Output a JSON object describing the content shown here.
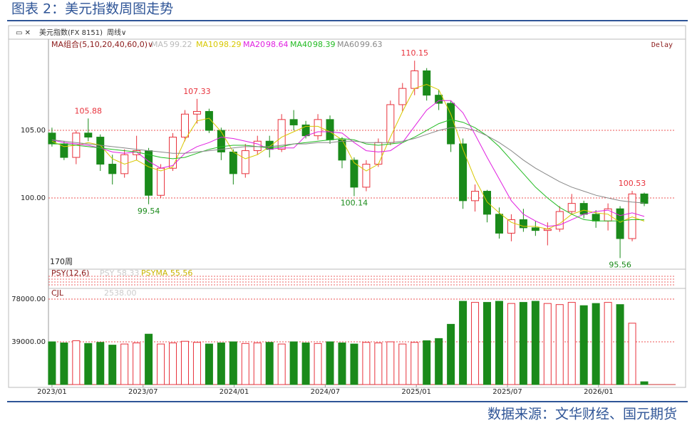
{
  "header": {
    "title": "图表 2：美元指数周图走势"
  },
  "footer": {
    "source": "数据来源：文华财经、国元期货"
  },
  "toolbar": {
    "symbol": "美元指数(FX 8151)",
    "period": "周线∨"
  },
  "chart_data": {
    "type": "candlestick",
    "ma_title": "MA组合(5,10,20,40,60,0)∨",
    "status": "Delay",
    "count_label": "170周",
    "inactive_ma": {
      "name": "MA5",
      "value": 99.22
    },
    "xlim": [
      -1,
      178
    ],
    "xticks": [
      {
        "value": 0,
        "label": "2023/01"
      },
      {
        "value": 26,
        "label": "2023/07"
      },
      {
        "value": 52,
        "label": "2024/01"
      },
      {
        "value": 78,
        "label": "2024/07"
      },
      {
        "value": 104,
        "label": "2025/01"
      },
      {
        "value": 130,
        "label": "2025/07"
      },
      {
        "value": 156,
        "label": "2026/01"
      }
    ],
    "ylim": [
      95.16,
      111.74
    ],
    "yticks": [
      {
        "value": 105,
        "label": "105.00"
      },
      {
        "value": 100,
        "label": "100.00"
      }
    ],
    "grid": true,
    "candles": {
      "x": [
        0,
        3.45,
        6.9,
        10.35,
        13.8,
        17.25,
        20.7,
        24.15,
        27.6,
        31.05,
        34.5,
        37.95,
        41.4,
        44.85,
        48.3,
        51.75,
        55.2,
        58.65,
        62.1,
        65.55,
        69,
        72.45,
        75.9,
        79.35,
        82.8,
        86.25,
        89.7,
        93.15,
        96.6,
        100.05,
        103.5,
        106.95,
        110.4,
        113.85,
        117.3,
        120.75,
        124.2,
        127.65,
        131.1,
        134.55,
        138,
        141.45,
        144.9,
        148.35,
        151.8,
        155.25,
        158.7,
        162.15,
        165.6,
        169.05
      ],
      "open": [
        104.8,
        104.0,
        103.0,
        104.8,
        104.5,
        102.5,
        101.8,
        103.2,
        103.5,
        100.2,
        102.2,
        104.5,
        106.2,
        106.4,
        105.0,
        103.4,
        101.8,
        103.5,
        104.2,
        103.6,
        105.8,
        105.4,
        104.6,
        105.8,
        104.3,
        102.8,
        100.8,
        102.5,
        104.1,
        106.9,
        108.1,
        109.4,
        107.6,
        107.0,
        104.0,
        99.8,
        100.5,
        98.8,
        97.4,
        98.4,
        97.8,
        97.6,
        97.7,
        99.0,
        99.6,
        98.8,
        98.3,
        99.2,
        97.0,
        100.3
      ],
      "high": [
        105.2,
        104.2,
        105.0,
        105.88,
        104.7,
        103.2,
        103.6,
        104.6,
        103.7,
        102.5,
        104.8,
        106.5,
        107.33,
        106.6,
        105.2,
        103.6,
        104.0,
        104.6,
        104.6,
        106.2,
        106.5,
        105.7,
        106.2,
        106.1,
        104.5,
        103.0,
        102.8,
        104.4,
        107.2,
        108.5,
        110.15,
        109.6,
        108.0,
        107.2,
        104.4,
        101.0,
        100.6,
        99.3,
        98.8,
        99.2,
        98.3,
        98.2,
        99.4,
        100.3,
        99.8,
        99.1,
        99.6,
        99.4,
        100.53,
        100.4
      ],
      "low": [
        103.8,
        102.8,
        102.5,
        104.2,
        102.0,
        101.0,
        101.5,
        102.8,
        99.54,
        100.0,
        102.0,
        104.2,
        105.5,
        104.8,
        102.8,
        101.0,
        101.5,
        103.2,
        103.0,
        103.4,
        105.0,
        104.4,
        104.3,
        104.0,
        102.2,
        100.14,
        100.5,
        102.3,
        103.9,
        106.4,
        107.6,
        107.2,
        106.5,
        103.4,
        99.2,
        99.0,
        98.2,
        97.0,
        96.8,
        97.5,
        97.2,
        96.5,
        97.5,
        98.8,
        98.5,
        97.8,
        97.6,
        95.56,
        96.8,
        99.4
      ],
      "close": [
        104.0,
        103.0,
        104.8,
        104.5,
        102.5,
        101.8,
        103.2,
        103.5,
        100.2,
        102.2,
        104.5,
        106.2,
        106.4,
        105.0,
        103.4,
        101.8,
        103.5,
        104.2,
        103.6,
        105.8,
        105.4,
        104.6,
        105.8,
        104.3,
        102.8,
        100.8,
        102.5,
        104.1,
        106.9,
        108.1,
        109.4,
        107.6,
        107.0,
        104.0,
        99.8,
        100.5,
        98.8,
        97.4,
        98.4,
        97.8,
        97.6,
        97.7,
        99.0,
        99.6,
        98.8,
        98.3,
        99.2,
        97.0,
        100.3,
        99.6
      ],
      "high_labels": [
        null,
        null,
        null,
        "105.88",
        null,
        null,
        null,
        null,
        null,
        null,
        null,
        null,
        "107.33",
        null,
        null,
        null,
        null,
        null,
        null,
        null,
        null,
        null,
        null,
        null,
        null,
        null,
        null,
        null,
        null,
        null,
        "110.15",
        null,
        null,
        null,
        null,
        null,
        null,
        null,
        null,
        null,
        null,
        null,
        null,
        null,
        null,
        null,
        null,
        null,
        "100.53",
        null
      ],
      "low_labels": [
        null,
        null,
        null,
        null,
        null,
        null,
        null,
        null,
        "99.54",
        null,
        null,
        null,
        null,
        null,
        null,
        null,
        null,
        null,
        null,
        null,
        null,
        null,
        null,
        null,
        null,
        "100.14",
        null,
        null,
        null,
        null,
        null,
        null,
        null,
        null,
        null,
        null,
        null,
        null,
        null,
        null,
        null,
        null,
        null,
        null,
        null,
        null,
        null,
        "95.56",
        null,
        null
      ],
      "up_color": "#e8323c",
      "down_color": "#1a8a1a"
    },
    "series": [
      {
        "name": "MA10",
        "color": "#d8c800",
        "values": [
          104.2,
          103.8,
          103.9,
          104.1,
          103.9,
          102.9,
          102.5,
          102.8,
          102.3,
          102.0,
          102.3,
          104.3,
          105.7,
          105.9,
          104.9,
          103.4,
          102.9,
          103.2,
          103.8,
          104.5,
          104.9,
          105.3,
          105.3,
          104.9,
          104.3,
          102.6,
          102.0,
          102.5,
          104.5,
          106.4,
          108.1,
          108.4,
          108.0,
          106.2,
          103.6,
          101.4,
          99.7,
          98.9,
          98.2,
          97.9,
          97.9,
          97.7,
          98.1,
          98.8,
          99.1,
          98.9,
          98.8,
          98.2,
          98.6,
          98.29
        ]
      },
      {
        "name": "MA20",
        "color": "#e020e0",
        "values": [
          104.3,
          104.1,
          104.0,
          103.9,
          103.7,
          103.4,
          103.3,
          103.4,
          102.7,
          102.2,
          102.4,
          103.3,
          103.8,
          104.1,
          104.5,
          104.4,
          104.2,
          104.0,
          103.6,
          103.7,
          103.7,
          104.6,
          104.9,
          104.9,
          104.8,
          104.1,
          103.5,
          103.4,
          103.5,
          104.1,
          105.3,
          106.5,
          107.2,
          107.2,
          106.3,
          104.7,
          103.0,
          101.4,
          99.8,
          98.8,
          98.3,
          97.9,
          98.0,
          98.4,
          98.8,
          99.0,
          99.1,
          98.7,
          98.9,
          98.64
        ]
      },
      {
        "name": "MA40",
        "color": "#22bb22",
        "values": [
          104.0,
          104.0,
          103.9,
          103.8,
          103.7,
          103.6,
          103.5,
          103.4,
          103.2,
          103.0,
          102.9,
          103.0,
          103.3,
          103.6,
          103.8,
          103.9,
          103.9,
          103.8,
          103.7,
          103.8,
          104.0,
          104.1,
          104.2,
          104.3,
          104.4,
          104.3,
          104.0,
          103.9,
          104.0,
          104.1,
          104.5,
          105.0,
          105.5,
          105.8,
          105.6,
          105.2,
          104.6,
          103.8,
          102.8,
          101.8,
          100.8,
          100.0,
          99.3,
          98.8,
          98.4,
          98.3,
          98.3,
          98.3,
          98.4,
          98.39
        ]
      },
      {
        "name": "MA60",
        "color": "#888888",
        "values": [
          104.3,
          104.2,
          104.1,
          104.0,
          103.9,
          103.8,
          103.7,
          103.6,
          103.5,
          103.4,
          103.3,
          103.3,
          103.4,
          103.5,
          103.6,
          103.7,
          103.8,
          103.8,
          103.8,
          103.9,
          104.0,
          104.0,
          104.1,
          104.1,
          104.2,
          104.2,
          104.1,
          104.1,
          104.1,
          104.2,
          104.4,
          104.7,
          105.0,
          105.2,
          105.2,
          105.0,
          104.6,
          104.1,
          103.5,
          102.8,
          102.2,
          101.7,
          101.2,
          100.8,
          100.5,
          100.2,
          100.0,
          99.8,
          99.7,
          99.63
        ]
      }
    ],
    "psy": {
      "title": "PSY(12,6)",
      "psy_label": "PSY 58.33",
      "psyma_label": "PSYMA 55.56"
    },
    "volume": {
      "title": "CJL",
      "value_label": "2538.00",
      "ylim": [
        0,
        87750
      ],
      "yticks": [
        {
          "value": 78000,
          "label": "78000.00"
        },
        {
          "value": 39000,
          "label": "39000.00"
        }
      ],
      "values": [
        39000,
        38000,
        40000,
        37500,
        38500,
        36000,
        37000,
        38000,
        46000,
        37000,
        38000,
        39500,
        38500,
        37000,
        38000,
        39000,
        37500,
        38000,
        38500,
        37000,
        39000,
        38000,
        37500,
        39000,
        38000,
        37000,
        38500,
        38000,
        39000,
        37000,
        38500,
        40000,
        42000,
        55000,
        76000,
        75000,
        75000,
        76000,
        74000,
        75000,
        76000,
        74000,
        73000,
        75000,
        72000,
        74000,
        75000,
        73000,
        56000,
        2538
      ]
    }
  }
}
